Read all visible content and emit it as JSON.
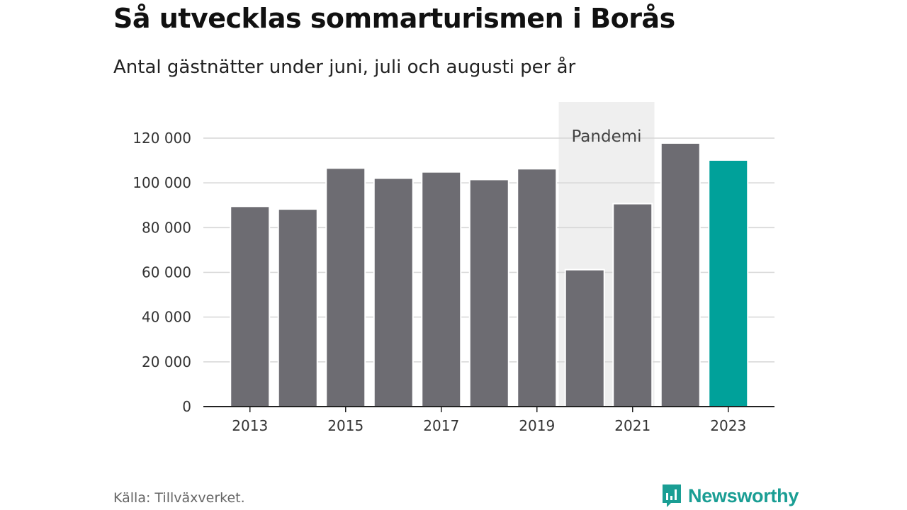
{
  "header": {
    "title": "Så utvecklas sommarturismen i Borås",
    "subtitle": "Antal gästnätter under juni, juli och augusti per år"
  },
  "footer": {
    "source": "Källa: Tillväxverket.",
    "brand": "Newsworthy",
    "brand_icon": "bar-chart-speech-bubble-icon"
  },
  "colors": {
    "bar": "#6d6c72",
    "highlight": "#00a19a",
    "shade": "#efefef",
    "grid": "#d6d6d6",
    "axis": "#222222",
    "brand": "#1a9e94"
  },
  "chart_data": {
    "type": "bar",
    "categories": [
      "2013",
      "2014",
      "2015",
      "2016",
      "2017",
      "2018",
      "2019",
      "2020",
      "2021",
      "2022",
      "2023"
    ],
    "values": [
      89500,
      88300,
      106600,
      102100,
      104900,
      101500,
      106300,
      61200,
      90700,
      117800,
      110200
    ],
    "highlight_category": "2023",
    "ylim": [
      0,
      120000
    ],
    "y_ticks": [
      0,
      20000,
      40000,
      60000,
      80000,
      100000,
      120000
    ],
    "y_tick_labels": [
      "0",
      "20 000",
      "40 000",
      "60 000",
      "80 000",
      "100 000",
      "120 000"
    ],
    "x_tick_labels": [
      "2013",
      "2015",
      "2017",
      "2019",
      "2021",
      "2023"
    ],
    "grid": true,
    "annotation": {
      "text": "Pandemi",
      "from": "2020",
      "to": "2021"
    }
  }
}
